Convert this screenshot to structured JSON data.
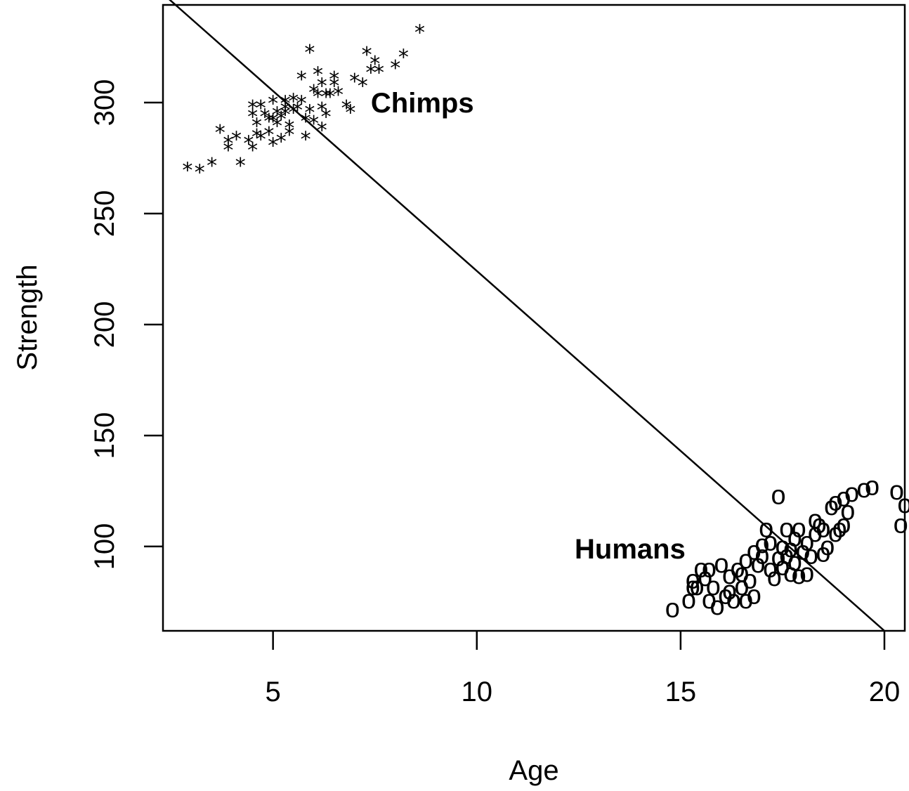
{
  "chart_data": {
    "type": "scatter",
    "xlabel": "Age",
    "ylabel": "Strength",
    "xlim": [
      2.3,
      20.5
    ],
    "ylim": [
      62,
      344
    ],
    "xticks": [
      5,
      10,
      15,
      20
    ],
    "yticks": [
      100,
      150,
      200,
      250,
      300
    ],
    "grid": false,
    "annotations": [
      {
        "text": "Chimps",
        "x": 7.4,
        "y": 300
      },
      {
        "text": "Humans",
        "x": 12.4,
        "y": 99
      }
    ],
    "fit_line": {
      "x": [
        2.3,
        20.0
      ],
      "y": [
        349,
        62
      ]
    },
    "series": [
      {
        "marker": "*",
        "points": [
          [
            2.9,
            272
          ],
          [
            3.2,
            271
          ],
          [
            3.5,
            274
          ],
          [
            3.7,
            289
          ],
          [
            3.9,
            284
          ],
          [
            3.9,
            281
          ],
          [
            4.1,
            286
          ],
          [
            4.2,
            274
          ],
          [
            4.4,
            284
          ],
          [
            4.5,
            281
          ],
          [
            4.5,
            300
          ],
          [
            4.5,
            296
          ],
          [
            4.6,
            287
          ],
          [
            4.6,
            292
          ],
          [
            4.7,
            286
          ],
          [
            4.7,
            300
          ],
          [
            4.8,
            296
          ],
          [
            4.9,
            294
          ],
          [
            4.9,
            288
          ],
          [
            5.0,
            302
          ],
          [
            5.0,
            283
          ],
          [
            5.0,
            294
          ],
          [
            5.1,
            297
          ],
          [
            5.1,
            292
          ],
          [
            5.2,
            295
          ],
          [
            5.2,
            285
          ],
          [
            5.3,
            299
          ],
          [
            5.3,
            297
          ],
          [
            5.3,
            302
          ],
          [
            5.4,
            291
          ],
          [
            5.4,
            288
          ],
          [
            5.5,
            303
          ],
          [
            5.5,
            298
          ],
          [
            5.6,
            299
          ],
          [
            5.7,
            313
          ],
          [
            5.7,
            302
          ],
          [
            5.8,
            294
          ],
          [
            5.8,
            286
          ],
          [
            5.9,
            325
          ],
          [
            5.9,
            298
          ],
          [
            6.0,
            307
          ],
          [
            6.0,
            293
          ],
          [
            6.1,
            305
          ],
          [
            6.1,
            315
          ],
          [
            6.2,
            310
          ],
          [
            6.2,
            299
          ],
          [
            6.2,
            290
          ],
          [
            6.3,
            305
          ],
          [
            6.3,
            296
          ],
          [
            6.4,
            305
          ],
          [
            6.5,
            313
          ],
          [
            6.5,
            310
          ],
          [
            6.6,
            306
          ],
          [
            6.8,
            300
          ],
          [
            6.9,
            298
          ],
          [
            7.0,
            312
          ],
          [
            7.2,
            310
          ],
          [
            7.3,
            324
          ],
          [
            7.4,
            316
          ],
          [
            7.5,
            320
          ],
          [
            7.6,
            316
          ],
          [
            8.0,
            318
          ],
          [
            8.2,
            323
          ],
          [
            8.6,
            334
          ]
        ]
      },
      {
        "marker": "o",
        "points": [
          [
            14.8,
            72
          ],
          [
            15.2,
            76
          ],
          [
            15.3,
            82
          ],
          [
            15.3,
            85
          ],
          [
            15.4,
            82
          ],
          [
            15.5,
            90
          ],
          [
            15.6,
            86
          ],
          [
            15.7,
            76
          ],
          [
            15.7,
            90
          ],
          [
            15.8,
            82
          ],
          [
            15.9,
            73
          ],
          [
            16.0,
            92
          ],
          [
            16.1,
            78
          ],
          [
            16.2,
            87
          ],
          [
            16.2,
            80
          ],
          [
            16.3,
            76
          ],
          [
            16.4,
            90
          ],
          [
            16.5,
            88
          ],
          [
            16.5,
            82
          ],
          [
            16.6,
            76
          ],
          [
            16.6,
            94
          ],
          [
            16.7,
            85
          ],
          [
            16.8,
            78
          ],
          [
            16.8,
            98
          ],
          [
            16.9,
            92
          ],
          [
            17.0,
            96
          ],
          [
            17.0,
            101
          ],
          [
            17.1,
            108
          ],
          [
            17.2,
            90
          ],
          [
            17.2,
            102
          ],
          [
            17.3,
            86
          ],
          [
            17.4,
            95
          ],
          [
            17.4,
            123
          ],
          [
            17.5,
            91
          ],
          [
            17.5,
            100
          ],
          [
            17.6,
            96
          ],
          [
            17.6,
            108
          ],
          [
            17.7,
            88
          ],
          [
            17.7,
            99
          ],
          [
            17.8,
            93
          ],
          [
            17.8,
            104
          ],
          [
            17.9,
            87
          ],
          [
            17.9,
            108
          ],
          [
            18.0,
            98
          ],
          [
            18.1,
            102
          ],
          [
            18.1,
            88
          ],
          [
            18.2,
            96
          ],
          [
            18.3,
            106
          ],
          [
            18.3,
            112
          ],
          [
            18.4,
            110
          ],
          [
            18.5,
            108
          ],
          [
            18.5,
            97
          ],
          [
            18.6,
            100
          ],
          [
            18.7,
            118
          ],
          [
            18.8,
            106
          ],
          [
            18.8,
            120
          ],
          [
            18.9,
            108
          ],
          [
            19.0,
            110
          ],
          [
            19.0,
            122
          ],
          [
            19.1,
            116
          ],
          [
            19.2,
            124
          ],
          [
            19.5,
            126
          ],
          [
            19.7,
            127
          ],
          [
            20.3,
            125
          ],
          [
            20.4,
            110
          ],
          [
            20.5,
            119
          ]
        ]
      }
    ]
  }
}
